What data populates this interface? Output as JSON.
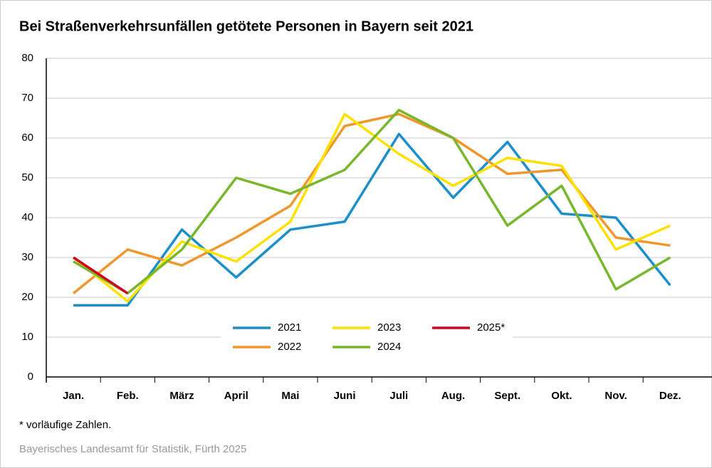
{
  "chart_data": {
    "type": "line",
    "title": "Bei Straßenverkehrsunfällen getötete Personen in Bayern seit 2021",
    "categories": [
      "Jan.",
      "Feb.",
      "März",
      "April",
      "Mai",
      "Juni",
      "Juli",
      "Aug.",
      "Sept.",
      "Okt.",
      "Nov.",
      "Dez."
    ],
    "series": [
      {
        "name": "2021",
        "color": "#1a8fc9",
        "values": [
          18,
          18,
          37,
          25,
          37,
          39,
          61,
          45,
          59,
          41,
          40,
          23
        ]
      },
      {
        "name": "2022",
        "color": "#f0962a",
        "values": [
          21,
          32,
          28,
          35,
          43,
          63,
          66,
          60,
          51,
          52,
          35,
          33
        ]
      },
      {
        "name": "2023",
        "color": "#ffe000",
        "values": [
          30,
          19,
          34,
          29,
          39,
          66,
          56,
          48,
          55,
          53,
          32,
          38
        ]
      },
      {
        "name": "2024",
        "color": "#76b82a",
        "values": [
          29,
          21,
          32,
          50,
          46,
          52,
          67,
          60,
          38,
          48,
          22,
          30
        ]
      },
      {
        "name": "2025*",
        "color": "#d7001e",
        "values": [
          30,
          21,
          null,
          null,
          null,
          null,
          null,
          null,
          null,
          null,
          null,
          null
        ]
      }
    ],
    "ylim": [
      0,
      80
    ],
    "yticks": [
      0,
      10,
      20,
      30,
      40,
      50,
      60,
      70,
      80
    ],
    "grid": true,
    "footnote": "* vorläufige Zahlen.",
    "source": "Bayerisches Landesamt für Statistik, Fürth 2025"
  }
}
